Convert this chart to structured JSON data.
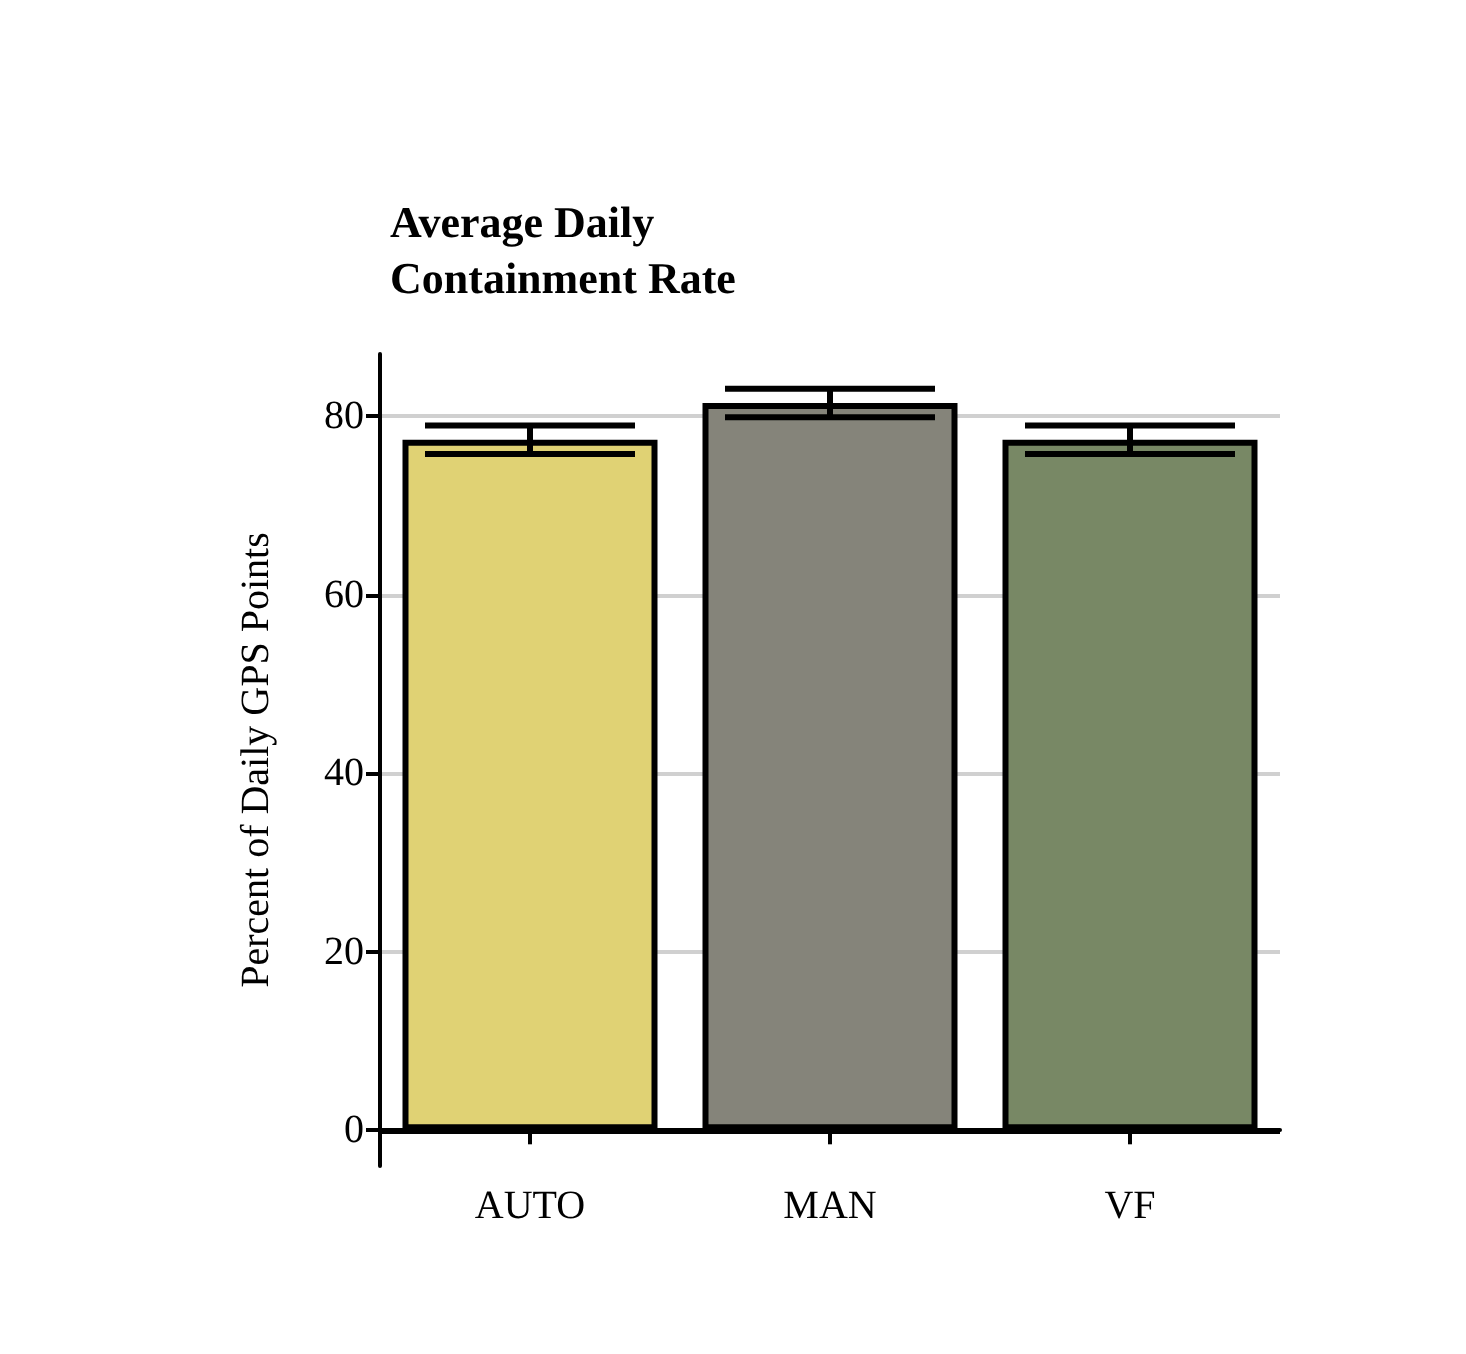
{
  "chart_data": {
    "type": "bar",
    "title": "Average Daily\nContainment Rate",
    "ylabel": "Percent of Daily GPS Points",
    "categories": [
      "AUTO",
      "MAN",
      "VF"
    ],
    "values": [
      77.4,
      81.5,
      77.4
    ],
    "colors": [
      "#e0d274",
      "#85847a",
      "#788865"
    ],
    "errors": [
      1.6,
      1.6,
      1.6
    ],
    "ylim": [
      -4,
      87
    ],
    "yticks": [
      0,
      20,
      40,
      60,
      80
    ],
    "grid": "y",
    "ref_lines": [
      {
        "axis": "y",
        "value": 0,
        "color": "#000000"
      }
    ]
  }
}
